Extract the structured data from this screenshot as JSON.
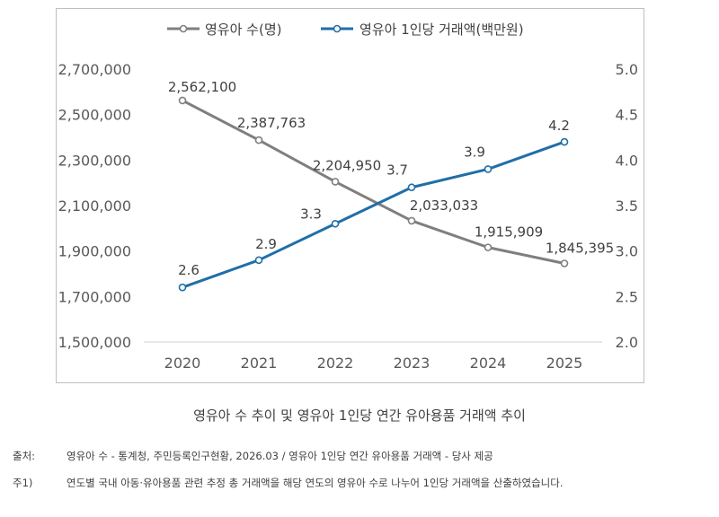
{
  "chart_data": {
    "type": "line",
    "categories": [
      "2020",
      "2021",
      "2022",
      "2023",
      "2024",
      "2025"
    ],
    "series": [
      {
        "name": "영유아 수(명)",
        "axis": "left",
        "color": "#7f7f7f",
        "values": [
          2562100,
          2387763,
          2204950,
          2033033,
          1915909,
          1845395
        ],
        "labels": [
          "2,562,100",
          "2,387,763",
          "2,204,950",
          "2,033,033",
          "1,915,909",
          "1,845,395"
        ]
      },
      {
        "name": "영유아 1인당 거래액(백만원)",
        "axis": "right",
        "color": "#1f6fa8",
        "values": [
          2.6,
          2.9,
          3.3,
          3.7,
          3.9,
          4.2
        ],
        "labels": [
          "2.6",
          "2.9",
          "3.3",
          "3.7",
          "3.9",
          "4.2"
        ]
      }
    ],
    "y_left": {
      "ylim": [
        1500000,
        2700000
      ],
      "ticks": [
        1500000,
        1700000,
        1900000,
        2100000,
        2300000,
        2500000,
        2700000
      ],
      "tick_labels": [
        "1,500,000",
        "1,700,000",
        "1,900,000",
        "2,100,000",
        "2,300,000",
        "2,500,000",
        "2,700,000"
      ]
    },
    "y_right": {
      "ylim": [
        2.0,
        5.0
      ],
      "ticks": [
        2.0,
        2.5,
        3.0,
        3.5,
        4.0,
        4.5,
        5.0
      ],
      "tick_labels": [
        "2.0",
        "2.5",
        "3.0",
        "3.5",
        "4.0",
        "4.5",
        "5.0"
      ]
    },
    "grid": false,
    "legend_position": "top-center"
  },
  "caption": "영유아 수 추이 및 영유아 1인당 연간 유아용품 거래액 추이",
  "notes": [
    {
      "key": "출처:",
      "text": "영유아 수 - 통계청, 주민등록인구현황, 2026.03 / 영유아 1인당 연간 유아용품 거래액 - 당사 제공"
    },
    {
      "key": "주1)",
      "text": "연도별 국내 아동·유아용품 관련 추정 총 거래액을 해당 연도의 영유아 수로 나누어 1인당 거래액을 산출하였습니다."
    }
  ]
}
